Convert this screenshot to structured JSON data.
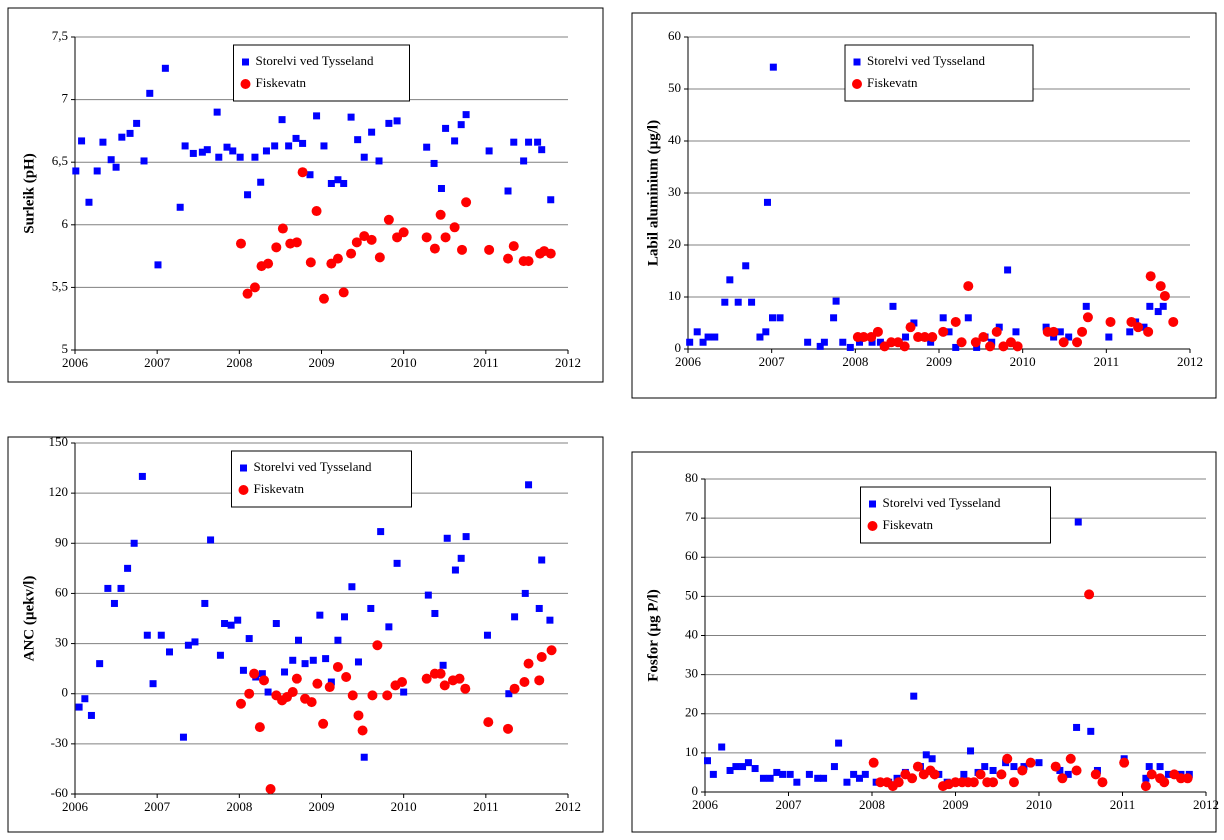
{
  "chart_data": [
    {
      "type": "scatter",
      "ylabel": "Surleik (pH)",
      "xlim": [
        2006,
        2012
      ],
      "xticks": [
        2006,
        2007,
        2008,
        2009,
        2010,
        2011,
        2012
      ],
      "ylim": [
        5,
        7.5
      ],
      "yticks": [
        5,
        {
          "value": 5.5,
          "label": "5,5"
        },
        6,
        {
          "value": 6.5,
          "label": "6,5"
        },
        7,
        {
          "value": 7.5,
          "label": "7,5"
        }
      ],
      "grid": true,
      "legend": "upper center",
      "series": [
        {
          "name": "Storelvi ved Tysseland",
          "color": "#0000FF",
          "marker": "square",
          "x": [
            2006.01,
            2006.08,
            2006.17,
            2006.27,
            2006.34,
            2006.44,
            2006.5,
            2006.57,
            2006.67,
            2006.75,
            2006.84,
            2006.91,
            2007.01,
            2007.1,
            2007.28,
            2007.34,
            2007.44,
            2007.55,
            2007.61,
            2007.73,
            2007.75,
            2007.85,
            2007.92,
            2008.01,
            2008.1,
            2008.19,
            2008.26,
            2008.33,
            2008.43,
            2008.52,
            2008.6,
            2008.69,
            2008.77,
            2008.86,
            2008.94,
            2009.03,
            2009.12,
            2009.2,
            2009.27,
            2009.36,
            2009.44,
            2009.52,
            2009.61,
            2009.7,
            2009.82,
            2009.92,
            2010.28,
            2010.37,
            2010.46,
            2010.51,
            2010.62,
            2010.7,
            2010.76,
            2011.04,
            2011.27,
            2011.34,
            2011.46,
            2011.52,
            2011.63,
            2011.68,
            2011.79
          ],
          "values": [
            6.43,
            6.67,
            6.18,
            6.43,
            6.66,
            6.52,
            6.46,
            6.7,
            6.73,
            6.81,
            6.51,
            7.05,
            5.68,
            7.25,
            6.14,
            6.63,
            6.57,
            6.58,
            6.6,
            6.9,
            6.54,
            6.62,
            6.59,
            6.54,
            6.24,
            6.54,
            6.34,
            6.59,
            6.63,
            6.84,
            6.63,
            6.69,
            6.65,
            6.4,
            6.87,
            6.63,
            6.33,
            6.36,
            6.33,
            6.86,
            6.68,
            6.54,
            6.74,
            6.51,
            6.81,
            6.83,
            6.62,
            6.49,
            6.29,
            6.77,
            6.67,
            6.8,
            6.88,
            6.59,
            6.27,
            6.66,
            6.51,
            6.66,
            6.66,
            6.6,
            6.2
          ]
        },
        {
          "name": "Fiskevatn",
          "color": "#FF0000",
          "marker": "circle",
          "x": [
            2008.02,
            2008.1,
            2008.19,
            2008.27,
            2008.35,
            2008.45,
            2008.53,
            2008.62,
            2008.7,
            2008.77,
            2008.87,
            2008.94,
            2009.03,
            2009.12,
            2009.2,
            2009.27,
            2009.36,
            2009.43,
            2009.52,
            2009.61,
            2009.71,
            2009.82,
            2009.92,
            2010.0,
            2010.28,
            2010.38,
            2010.45,
            2010.51,
            2010.62,
            2010.71,
            2010.76,
            2011.04,
            2011.27,
            2011.34,
            2011.46,
            2011.52,
            2011.66,
            2011.71,
            2011.79
          ],
          "values": [
            5.85,
            5.45,
            5.5,
            5.67,
            5.69,
            5.82,
            5.97,
            5.85,
            5.86,
            6.42,
            5.7,
            6.11,
            5.41,
            5.69,
            5.73,
            5.46,
            5.77,
            5.86,
            5.91,
            5.88,
            5.74,
            6.04,
            5.9,
            5.94,
            5.9,
            5.81,
            6.08,
            5.9,
            5.98,
            5.8,
            6.18,
            5.8,
            5.73,
            5.83,
            5.71,
            5.71,
            5.77,
            5.79,
            5.77
          ]
        }
      ]
    },
    {
      "type": "scatter",
      "ylabel": "Labil aluminium (µg/l)",
      "xlim": [
        2006,
        2012
      ],
      "xticks": [
        2006,
        2007,
        2008,
        2009,
        2010,
        2011,
        2012
      ],
      "ylim": [
        0,
        60
      ],
      "yticks": [
        0,
        10,
        20,
        30,
        40,
        50,
        60
      ],
      "grid": true,
      "legend": "upper center",
      "series": [
        {
          "name": "Storelvi ved Tysseland",
          "color": "#0000FF",
          "marker": "square",
          "x": [
            2006.02,
            2006.11,
            2006.18,
            2006.24,
            2006.32,
            2006.44,
            2006.5,
            2006.6,
            2006.69,
            2006.76,
            2006.86,
            2006.93,
            2006.95,
            2007.02,
            2007.01,
            2007.1,
            2007.43,
            2007.58,
            2007.63,
            2007.74,
            2007.77,
            2007.85,
            2007.94,
            2008.05,
            2008.2,
            2008.3,
            2008.45,
            2008.52,
            2008.6,
            2008.7,
            2008.8,
            2008.9,
            2009.05,
            2009.12,
            2009.2,
            2009.35,
            2009.45,
            2009.55,
            2009.63,
            2009.72,
            2009.82,
            2009.92,
            2010.28,
            2010.37,
            2010.45,
            2010.55,
            2010.76,
            2011.03,
            2011.28,
            2011.35,
            2011.45,
            2011.52,
            2011.62,
            2011.68
          ],
          "values": [
            1.3,
            3.3,
            1.3,
            2.3,
            2.3,
            9,
            13.3,
            9,
            16,
            9,
            2.3,
            3.3,
            28.2,
            54.2,
            6,
            6,
            1.3,
            0.5,
            1.3,
            6,
            9.2,
            1.3,
            0.3,
            1.3,
            1.3,
            1.3,
            8.2,
            1.3,
            2.3,
            5,
            2.3,
            1.3,
            6,
            3.3,
            0.3,
            6,
            0.3,
            2.3,
            1.3,
            4.2,
            15.2,
            3.3,
            4.2,
            2.3,
            3.3,
            2.3,
            8.2,
            2.3,
            3.3,
            5.2,
            4.2,
            8.2,
            7.2,
            8.2
          ]
        },
        {
          "name": "Fiskevatn",
          "color": "#FF0000",
          "marker": "circle",
          "x": [
            2008.03,
            2008.1,
            2008.19,
            2008.27,
            2008.35,
            2008.43,
            2008.51,
            2008.59,
            2008.66,
            2008.75,
            2008.83,
            2008.92,
            2009.05,
            2009.2,
            2009.27,
            2009.35,
            2009.44,
            2009.53,
            2009.61,
            2009.69,
            2009.77,
            2009.86,
            2009.94,
            2010.3,
            2010.37,
            2010.49,
            2010.65,
            2010.71,
            2010.78,
            2011.05,
            2011.3,
            2011.38,
            2011.5,
            2011.53,
            2011.65,
            2011.7,
            2011.8
          ],
          "values": [
            2.3,
            2.3,
            2.3,
            3.3,
            0.5,
            1.3,
            1.3,
            0.5,
            4.2,
            2.3,
            2.3,
            2.3,
            3.3,
            5.2,
            1.3,
            12.1,
            1.3,
            2.3,
            0.5,
            3.3,
            0.5,
            1.3,
            0.5,
            3.3,
            3.3,
            1.3,
            1.3,
            3.3,
            6.1,
            5.2,
            5.2,
            4.2,
            3.3,
            14,
            12.1,
            10.2,
            5.2
          ]
        }
      ]
    },
    {
      "type": "scatter",
      "ylabel": "ANC (µekv/l)",
      "xlim": [
        2006,
        2012
      ],
      "xticks": [
        2006,
        2007,
        2008,
        2009,
        2010,
        2011,
        2012
      ],
      "ylim": [
        -60,
        150
      ],
      "yticks": [
        -60,
        -30,
        0,
        30,
        60,
        90,
        120,
        150
      ],
      "grid": true,
      "legend": "upper center",
      "series": [
        {
          "name": "Storelvi ved Tysseland",
          "color": "#0000FF",
          "marker": "square",
          "x": [
            2006.05,
            2006.12,
            2006.2,
            2006.3,
            2006.4,
            2006.48,
            2006.56,
            2006.64,
            2006.72,
            2006.82,
            2006.88,
            2006.95,
            2007.05,
            2007.15,
            2007.32,
            2007.38,
            2007.46,
            2007.58,
            2007.65,
            2007.77,
            2007.82,
            2007.9,
            2007.98,
            2008.05,
            2008.12,
            2008.2,
            2008.28,
            2008.35,
            2008.45,
            2008.55,
            2008.65,
            2008.72,
            2008.8,
            2008.9,
            2008.98,
            2009.05,
            2009.12,
            2009.2,
            2009.28,
            2009.37,
            2009.45,
            2009.52,
            2009.6,
            2009.72,
            2009.82,
            2009.92,
            2010.0,
            2010.3,
            2010.38,
            2010.48,
            2010.53,
            2010.63,
            2010.7,
            2010.76,
            2011.02,
            2011.28,
            2011.35,
            2011.48,
            2011.52,
            2011.65,
            2011.68,
            2011.78
          ],
          "values": [
            -8,
            -3,
            -13,
            18,
            63,
            54,
            63,
            75,
            90,
            130,
            35,
            6,
            35,
            25,
            -26,
            29,
            31,
            54,
            92,
            23,
            42,
            41,
            44,
            14,
            33,
            10,
            12,
            1,
            42,
            13,
            20,
            32,
            18,
            20,
            47,
            21,
            7,
            32,
            46,
            64,
            19,
            -38,
            51,
            97,
            40,
            78,
            1,
            59,
            48,
            17,
            93,
            74,
            81,
            94,
            35,
            0,
            46,
            60,
            125,
            51,
            80,
            44
          ]
        },
        {
          "name": "Fiskevatn",
          "color": "#FF0000",
          "marker": "circle",
          "x": [
            2008.02,
            2008.12,
            2008.18,
            2008.25,
            2008.3,
            2008.38,
            2008.45,
            2008.52,
            2008.58,
            2008.65,
            2008.7,
            2008.8,
            2008.88,
            2008.95,
            2009.02,
            2009.1,
            2009.2,
            2009.3,
            2009.38,
            2009.45,
            2009.5,
            2009.62,
            2009.68,
            2009.8,
            2009.9,
            2009.98,
            2010.28,
            2010.38,
            2010.45,
            2010.5,
            2010.6,
            2010.68,
            2010.75,
            2011.03,
            2011.27,
            2011.35,
            2011.47,
            2011.52,
            2011.65,
            2011.68,
            2011.8
          ],
          "values": [
            -6,
            0,
            12,
            -20,
            8,
            -57,
            -1,
            -4,
            -2,
            1,
            9,
            -3,
            -5,
            6,
            -18,
            4,
            16,
            10,
            -1,
            -13,
            -22,
            -1,
            29,
            -1,
            5,
            7,
            9,
            12,
            12,
            5,
            8,
            9,
            3,
            -17,
            -21,
            3,
            7,
            18,
            8,
            22,
            26
          ]
        }
      ]
    },
    {
      "type": "scatter",
      "ylabel": "Fosfor  (µg P/l)",
      "xlim": [
        2006,
        2012
      ],
      "xticks": [
        2006,
        2007,
        2008,
        2009,
        2010,
        2011,
        2012
      ],
      "ylim": [
        0,
        80
      ],
      "yticks": [
        0,
        10,
        20,
        30,
        40,
        50,
        60,
        70,
        80
      ],
      "grid": true,
      "legend": "upper center",
      "series": [
        {
          "name": "Storelvi ved Tysseland",
          "color": "#0000FF",
          "marker": "square",
          "x": [
            2006.03,
            2006.1,
            2006.2,
            2006.3,
            2006.37,
            2006.45,
            2006.52,
            2006.6,
            2006.7,
            2006.78,
            2006.86,
            2006.93,
            2007.02,
            2007.1,
            2007.25,
            2007.35,
            2007.42,
            2007.55,
            2007.6,
            2007.7,
            2007.78,
            2007.85,
            2007.92,
            2008.05,
            2008.2,
            2008.3,
            2008.4,
            2008.5,
            2008.58,
            2008.65,
            2008.72,
            2008.8,
            2008.9,
            2009.0,
            2009.1,
            2009.18,
            2009.27,
            2009.35,
            2009.45,
            2009.6,
            2009.7,
            2009.82,
            2010.0,
            2010.25,
            2010.35,
            2010.45,
            2010.47,
            2010.62,
            2010.7,
            2011.02,
            2011.28,
            2011.32,
            2011.45,
            2011.55,
            2011.7,
            2011.8
          ],
          "values": [
            8,
            4.5,
            11.5,
            5.5,
            6.5,
            6.5,
            7.5,
            6,
            3.5,
            3.5,
            5,
            4.5,
            4.5,
            2.5,
            4.5,
            3.5,
            3.5,
            6.5,
            12.5,
            2.5,
            4.5,
            3.5,
            4.5,
            2.5,
            2.5,
            3.5,
            5,
            24.5,
            6.5,
            9.5,
            8.5,
            4.5,
            2.5,
            2.5,
            4.5,
            10.5,
            5,
            6.5,
            5.5,
            7.5,
            6.5,
            6.5,
            7.5,
            5.5,
            4.5,
            16.5,
            69,
            15.5,
            5.5,
            8.5,
            3.5,
            6.5,
            6.5,
            4.5,
            4.5,
            4.5
          ]
        },
        {
          "name": "Fiskevatn",
          "color": "#FF0000",
          "marker": "circle",
          "x": [
            2008.02,
            2008.1,
            2008.18,
            2008.25,
            2008.32,
            2008.4,
            2008.48,
            2008.55,
            2008.62,
            2008.7,
            2008.75,
            2008.85,
            2008.92,
            2009.0,
            2009.08,
            2009.15,
            2009.22,
            2009.3,
            2009.38,
            2009.45,
            2009.55,
            2009.62,
            2009.7,
            2009.8,
            2009.9,
            2010.2,
            2010.28,
            2010.38,
            2010.45,
            2010.6,
            2010.68,
            2010.76,
            2011.02,
            2011.28,
            2011.35,
            2011.45,
            2011.5,
            2011.62,
            2011.7,
            2011.78
          ],
          "values": [
            7.5,
            2.5,
            2.5,
            1.5,
            2.5,
            4.5,
            3.5,
            6.5,
            4.5,
            5.5,
            4.5,
            1.5,
            2,
            2.5,
            2.5,
            2.5,
            2.5,
            4.5,
            2.5,
            2.5,
            4.5,
            8.5,
            2.5,
            5.5,
            7.5,
            6.5,
            3.5,
            8.5,
            5.5,
            50.5,
            4.5,
            2.5,
            7.5,
            1.5,
            4.5,
            3.5,
            2.5,
            4.5,
            3.5,
            3.5
          ]
        }
      ]
    }
  ]
}
